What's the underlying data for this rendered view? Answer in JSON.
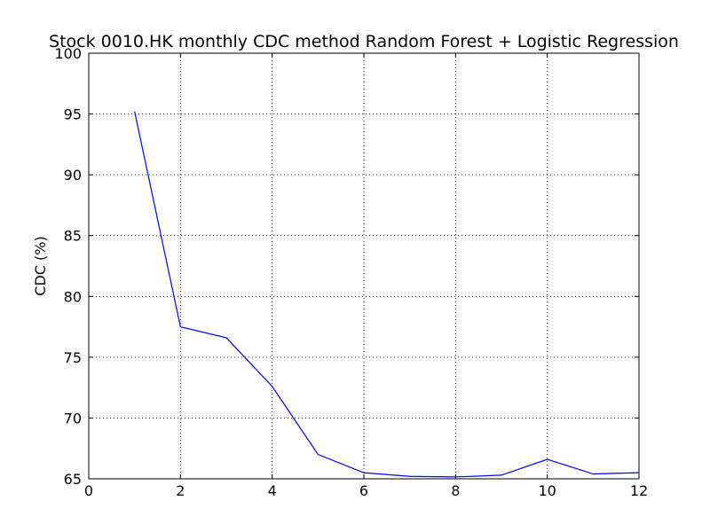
{
  "chart_data": {
    "type": "line",
    "title": "Stock 0010.HK monthly CDC method Random Forest + Logistic Regression",
    "xlabel": "",
    "ylabel": "CDC (%)",
    "xlim": [
      0,
      12
    ],
    "ylim": [
      65,
      100
    ],
    "x_ticks": [
      0,
      2,
      4,
      6,
      8,
      10,
      12
    ],
    "y_ticks": [
      65,
      70,
      75,
      80,
      85,
      90,
      95,
      100
    ],
    "grid": true,
    "series": [
      {
        "color": "#0000ff",
        "x": [
          1,
          2,
          3,
          4,
          5,
          6,
          7,
          8,
          9,
          10,
          11,
          12
        ],
        "y": [
          95.2,
          77.5,
          76.6,
          72.6,
          67.0,
          65.5,
          65.2,
          65.15,
          65.3,
          66.6,
          65.4,
          65.5
        ]
      }
    ]
  }
}
